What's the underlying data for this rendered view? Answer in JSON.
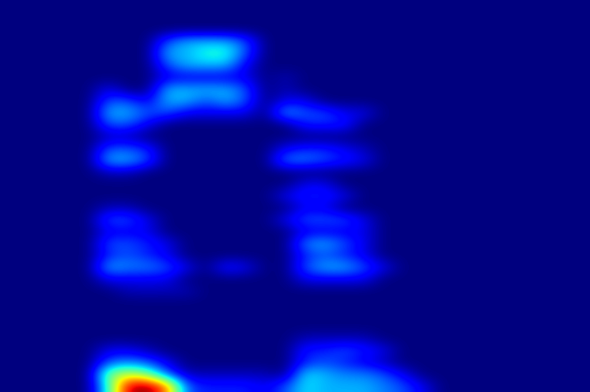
{
  "chart_data": {
    "type": "heatmap",
    "color": "jet",
    "tick_labels": false,
    "color_range": [
      0,
      1
    ],
    "cells": [
      [
        0,
        0,
        0,
        0,
        0,
        0,
        0,
        0,
        0,
        0,
        0,
        0,
        0,
        0,
        0,
        0,
        0,
        0,
        0,
        0,
        0,
        0,
        0,
        0,
        0,
        0,
        0,
        0,
        0,
        0
      ],
      [
        0,
        0,
        0,
        0,
        0,
        0,
        0,
        0,
        0,
        0,
        0,
        0,
        0,
        0,
        0,
        0,
        0,
        0,
        0,
        0,
        0,
        0,
        0,
        0,
        0,
        0,
        0,
        0,
        0,
        0
      ],
      [
        0,
        0,
        0,
        0,
        0,
        0,
        0,
        0,
        0,
        0,
        0,
        0,
        0,
        0,
        0,
        0,
        0,
        0,
        0,
        0,
        0,
        0,
        0,
        0,
        0,
        0,
        0,
        0,
        0,
        0
      ],
      [
        0,
        0,
        0,
        0,
        0,
        0,
        0,
        0,
        0.2,
        0.3,
        0.3,
        0.3,
        0.2,
        0,
        0,
        0,
        0,
        0,
        0,
        0,
        0,
        0,
        0,
        0,
        0,
        0,
        0,
        0,
        0,
        0
      ],
      [
        0,
        0,
        0,
        0,
        0,
        0,
        0,
        0,
        0.3,
        0.3,
        0.4,
        0.4,
        0.2,
        0,
        0,
        0,
        0,
        0,
        0,
        0,
        0,
        0,
        0,
        0,
        0,
        0,
        0,
        0,
        0,
        0
      ],
      [
        0,
        0,
        0,
        0,
        0,
        0,
        0,
        0,
        0.2,
        0.3,
        0.3,
        0.3,
        0.1,
        0,
        0,
        0,
        0,
        0,
        0,
        0,
        0,
        0,
        0,
        0,
        0,
        0,
        0,
        0,
        0,
        0
      ],
      [
        0,
        0,
        0,
        0,
        0,
        0,
        0,
        0,
        0.1,
        0.1,
        0.1,
        0.1,
        0.1,
        0,
        0.05,
        0,
        0,
        0,
        0,
        0,
        0,
        0,
        0,
        0,
        0,
        0,
        0,
        0,
        0,
        0
      ],
      [
        0,
        0,
        0,
        0,
        0,
        0.1,
        0,
        0,
        0.3,
        0.3,
        0.3,
        0.3,
        0.2,
        0,
        0.05,
        0,
        0,
        0,
        0,
        0,
        0,
        0,
        0,
        0,
        0,
        0,
        0,
        0,
        0,
        0
      ],
      [
        0,
        0,
        0,
        0,
        0,
        0.2,
        0.2,
        0.1,
        0.3,
        0.3,
        0.2,
        0.3,
        0.2,
        0,
        0.1,
        0.1,
        0,
        0,
        0,
        0,
        0,
        0,
        0,
        0,
        0,
        0,
        0,
        0,
        0,
        0
      ],
      [
        0,
        0,
        0,
        0,
        0,
        0.3,
        0.3,
        0.2,
        0.2,
        0.1,
        0.1,
        0.1,
        0.1,
        0,
        0.3,
        0.2,
        0.2,
        0.1,
        0.1,
        0,
        0,
        0,
        0,
        0,
        0,
        0,
        0,
        0,
        0,
        0
      ],
      [
        0,
        0,
        0,
        0,
        0,
        0.2,
        0.2,
        0.1,
        0,
        0,
        0,
        0,
        0,
        0,
        0,
        0.15,
        0.15,
        0.15,
        0,
        0,
        0,
        0,
        0,
        0,
        0,
        0,
        0,
        0,
        0,
        0
      ],
      [
        0,
        0,
        0,
        0,
        0,
        0.05,
        0.05,
        0,
        0,
        0,
        0,
        0,
        0,
        0,
        0,
        0,
        0,
        0,
        0,
        0,
        0,
        0,
        0,
        0,
        0,
        0,
        0,
        0,
        0,
        0
      ],
      [
        0,
        0,
        0,
        0,
        0,
        0.2,
        0.2,
        0.15,
        0,
        0,
        0,
        0,
        0,
        0,
        0.1,
        0.15,
        0.15,
        0.1,
        0.05,
        0,
        0,
        0,
        0,
        0,
        0,
        0,
        0,
        0,
        0,
        0
      ],
      [
        0,
        0,
        0,
        0,
        0,
        0.3,
        0.3,
        0.2,
        0,
        0,
        0,
        0,
        0,
        0,
        0.25,
        0.25,
        0.2,
        0.15,
        0.1,
        0,
        0,
        0,
        0,
        0,
        0,
        0,
        0,
        0,
        0,
        0
      ],
      [
        0,
        0,
        0,
        0,
        0,
        0.05,
        0.05,
        0,
        0,
        0,
        0,
        0,
        0,
        0,
        0,
        0,
        0,
        0,
        0,
        0,
        0,
        0,
        0,
        0,
        0,
        0,
        0,
        0,
        0,
        0
      ],
      [
        0,
        0,
        0,
        0,
        0,
        0,
        0,
        0,
        0,
        0,
        0,
        0,
        0,
        0,
        0,
        0.1,
        0.1,
        0,
        0,
        0,
        0,
        0,
        0,
        0,
        0,
        0,
        0,
        0,
        0,
        0
      ],
      [
        0,
        0,
        0,
        0,
        0,
        0,
        0,
        0,
        0,
        0,
        0,
        0,
        0,
        0,
        0.1,
        0.15,
        0.15,
        0.1,
        0,
        0,
        0,
        0,
        0,
        0,
        0,
        0,
        0,
        0,
        0,
        0
      ],
      [
        0,
        0,
        0,
        0,
        0,
        0.05,
        0.05,
        0,
        0,
        0,
        0,
        0,
        0,
        0,
        0,
        0.1,
        0.1,
        0,
        0,
        0,
        0,
        0,
        0,
        0,
        0,
        0,
        0,
        0,
        0,
        0
      ],
      [
        0,
        0,
        0,
        0,
        0,
        0.2,
        0.2,
        0.1,
        0,
        0,
        0,
        0,
        0,
        0,
        0.1,
        0.2,
        0.2,
        0.2,
        0.1,
        0,
        0,
        0,
        0,
        0,
        0,
        0,
        0,
        0,
        0,
        0
      ],
      [
        0,
        0,
        0,
        0,
        0,
        0.1,
        0.1,
        0.1,
        0,
        0,
        0,
        0,
        0,
        0,
        0,
        0.1,
        0.1,
        0.1,
        0.1,
        0,
        0,
        0,
        0,
        0,
        0,
        0,
        0,
        0,
        0,
        0
      ],
      [
        0,
        0,
        0,
        0,
        0,
        0.2,
        0.2,
        0.15,
        0.1,
        0,
        0,
        0,
        0,
        0,
        0,
        0.25,
        0.3,
        0.2,
        0.1,
        0,
        0,
        0,
        0,
        0,
        0,
        0,
        0,
        0,
        0,
        0
      ],
      [
        0,
        0,
        0,
        0,
        0,
        0.15,
        0.2,
        0.15,
        0.1,
        0,
        0,
        0,
        0,
        0,
        0,
        0.15,
        0.2,
        0.15,
        0.1,
        0,
        0,
        0,
        0,
        0,
        0,
        0,
        0,
        0,
        0,
        0
      ],
      [
        0,
        0,
        0,
        0,
        0,
        0.3,
        0.25,
        0.25,
        0.2,
        0.1,
        0,
        0.15,
        0.1,
        0,
        0,
        0.2,
        0.3,
        0.3,
        0.2,
        0.1,
        0,
        0,
        0,
        0,
        0,
        0,
        0,
        0,
        0,
        0
      ],
      [
        0,
        0,
        0,
        0,
        0,
        0.1,
        0.1,
        0.1,
        0.1,
        0,
        0,
        0,
        0,
        0,
        0,
        0.1,
        0.1,
        0.1,
        0.1,
        0,
        0,
        0,
        0,
        0,
        0,
        0,
        0,
        0,
        0,
        0
      ],
      [
        0,
        0,
        0,
        0,
        0,
        0,
        0.05,
        0.05,
        0.05,
        0.05,
        0,
        0,
        0,
        0,
        0,
        0,
        0,
        0,
        0,
        0,
        0,
        0,
        0,
        0,
        0,
        0,
        0,
        0,
        0,
        0
      ],
      [
        0,
        0,
        0,
        0,
        0,
        0,
        0,
        0,
        0,
        0,
        0,
        0,
        0,
        0,
        0,
        0,
        0,
        0,
        0,
        0,
        0,
        0,
        0,
        0,
        0,
        0,
        0,
        0,
        0,
        0
      ],
      [
        0,
        0,
        0,
        0,
        0,
        0,
        0,
        0,
        0,
        0,
        0,
        0,
        0,
        0,
        0,
        0,
        0,
        0,
        0,
        0,
        0,
        0,
        0,
        0,
        0,
        0,
        0,
        0,
        0,
        0
      ],
      [
        0,
        0,
        0,
        0,
        0,
        0,
        0,
        0,
        0,
        0,
        0,
        0,
        0,
        0,
        0,
        0,
        0,
        0,
        0,
        0,
        0,
        0,
        0,
        0,
        0,
        0,
        0,
        0,
        0,
        0
      ],
      [
        0,
        0,
        0,
        0,
        0,
        0,
        0,
        0,
        0,
        0,
        0,
        0,
        0,
        0,
        0,
        0.05,
        0.05,
        0.05,
        0.05,
        0,
        0,
        0,
        0,
        0,
        0,
        0,
        0,
        0,
        0,
        0
      ],
      [
        0,
        0,
        0,
        0,
        0,
        0.1,
        0.1,
        0.05,
        0,
        0,
        0,
        0,
        0,
        0,
        0,
        0.15,
        0.15,
        0.2,
        0.15,
        0.1,
        0,
        0,
        0,
        0,
        0,
        0,
        0,
        0,
        0,
        0
      ],
      [
        0,
        0,
        0,
        0,
        0,
        0.2,
        0.25,
        0.2,
        0.1,
        0,
        0,
        0,
        0,
        0,
        0,
        0.15,
        0.2,
        0.15,
        0.1,
        0.05,
        0,
        0,
        0,
        0,
        0,
        0,
        0,
        0,
        0,
        0
      ],
      [
        0,
        0,
        0,
        0,
        0,
        0.5,
        0.6,
        0.5,
        0.2,
        0.05,
        0.05,
        0.05,
        0.05,
        0.05,
        0,
        0.35,
        0.3,
        0.25,
        0.25,
        0.2,
        0.1,
        0,
        0,
        0,
        0,
        0,
        0,
        0,
        0,
        0
      ],
      [
        0,
        0,
        0,
        0,
        0,
        0.4,
        0.95,
        1.0,
        0.8,
        0.2,
        0.15,
        0.15,
        0.15,
        0.1,
        0.2,
        0.35,
        0.3,
        0.3,
        0.3,
        0.25,
        0.2,
        0.1,
        0,
        0,
        0,
        0,
        0,
        0,
        0,
        0
      ]
    ]
  }
}
